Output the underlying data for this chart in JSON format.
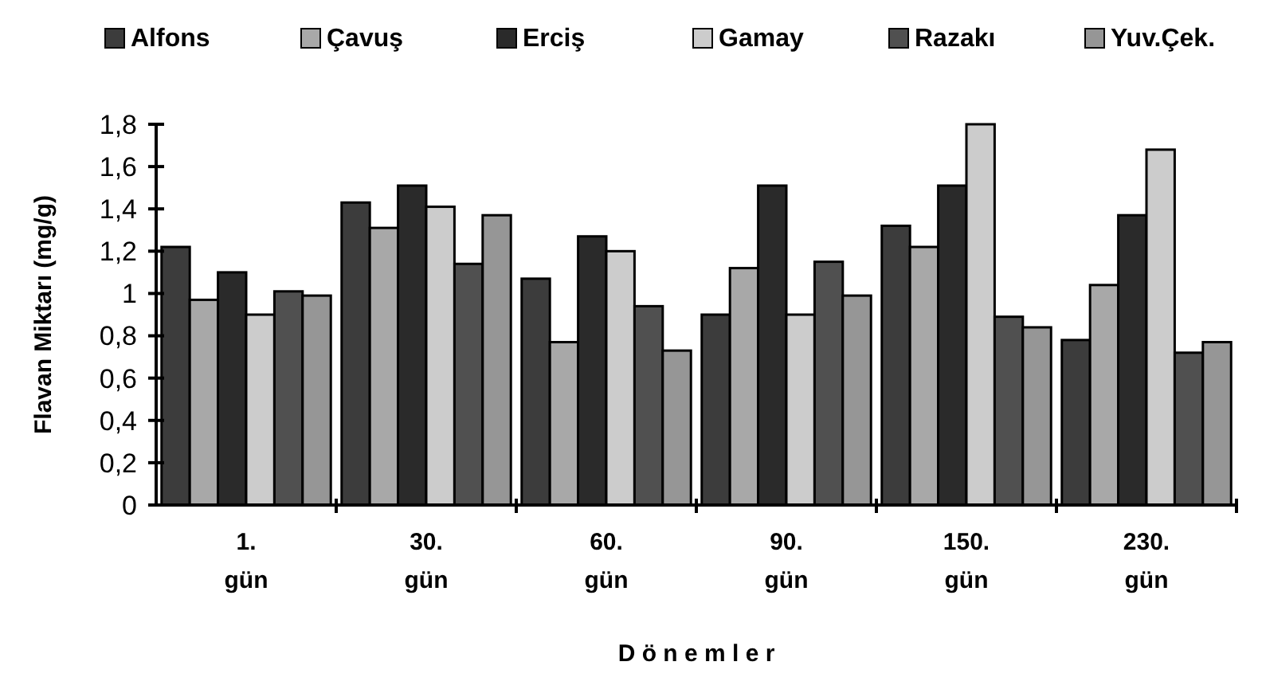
{
  "chart_data": {
    "type": "bar",
    "xlabel": "D ö n e m l e r",
    "ylabel": "Flavan Miktarı (mg/g)",
    "categories": [
      "1. gün",
      "30. gün",
      "60. gün",
      "90. gün",
      "150. gün",
      "230. gün"
    ],
    "series": [
      {
        "name": "Alfons",
        "color": "#3c3c3c",
        "values": [
          1.22,
          1.43,
          1.07,
          0.9,
          1.32,
          0.78
        ]
      },
      {
        "name": "Çavuş",
        "color": "#a8a8a8",
        "values": [
          0.97,
          1.31,
          0.77,
          1.12,
          1.22,
          1.04
        ]
      },
      {
        "name": "Erciş",
        "color": "#2a2a2a",
        "values": [
          1.1,
          1.51,
          1.27,
          1.51,
          1.51,
          1.37
        ]
      },
      {
        "name": "Gamay",
        "color": "#cccccc",
        "values": [
          0.9,
          1.41,
          1.2,
          0.9,
          1.8,
          1.68
        ]
      },
      {
        "name": "Razakı",
        "color": "#505050",
        "values": [
          1.01,
          1.14,
          0.94,
          1.15,
          0.89,
          0.72
        ]
      },
      {
        "name": "Yuv.Çek.",
        "color": "#969696",
        "values": [
          0.99,
          1.37,
          0.73,
          0.99,
          0.84,
          0.77
        ]
      }
    ],
    "ylim": [
      0,
      1.8
    ],
    "yticks": [
      0,
      {
        "value": 0.2,
        "label": "0,2"
      },
      {
        "value": 0.4,
        "label": "0,4"
      },
      {
        "value": 0.6,
        "label": "0,6"
      },
      {
        "value": 0.8,
        "label": "0,8"
      },
      1,
      {
        "value": 1.2,
        "label": "1,2"
      },
      {
        "value": 1.4,
        "label": "1,4"
      },
      {
        "value": 1.6,
        "label": "1,6"
      },
      {
        "value": 1.8,
        "label": "1,8"
      }
    ],
    "grid": false,
    "legend": "top"
  }
}
